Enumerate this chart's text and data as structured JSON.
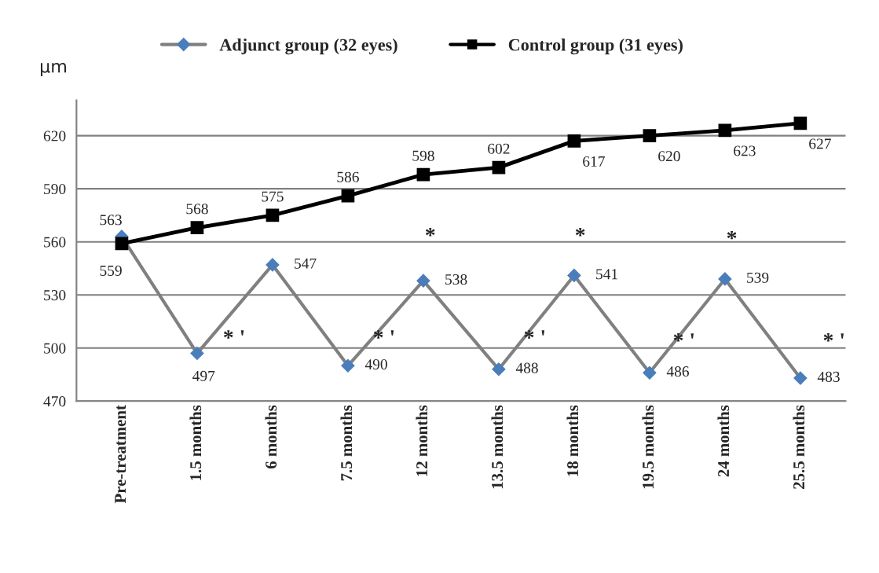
{
  "chart_data": {
    "type": "line",
    "ylabel": "µm",
    "categories": [
      "Pre-treatment",
      "1.5 months",
      "6 months",
      "7.5 months",
      "12 months",
      "13.5 months",
      "18 months",
      "19.5 months",
      "24 months",
      "25.5 months"
    ],
    "series": [
      {
        "name": "Adjunct group (32 eyes)",
        "color": "#4a7ebb",
        "marker": "diamond",
        "values": [
          563,
          497,
          547,
          490,
          538,
          488,
          541,
          486,
          539,
          483
        ]
      },
      {
        "name": "Control group (31 eyes)",
        "color": "#000000",
        "marker": "square",
        "values": [
          559,
          568,
          575,
          586,
          598,
          602,
          617,
          620,
          623,
          627
        ]
      }
    ],
    "data_labels": true,
    "ylim": [
      470,
      640
    ],
    "yticks": [
      470,
      500,
      530,
      560,
      590,
      620
    ],
    "grid": "y",
    "legend": "top",
    "annotations": [
      "* '",
      "* '",
      "* '",
      "* '",
      "* '",
      "*",
      "*",
      "*"
    ]
  }
}
